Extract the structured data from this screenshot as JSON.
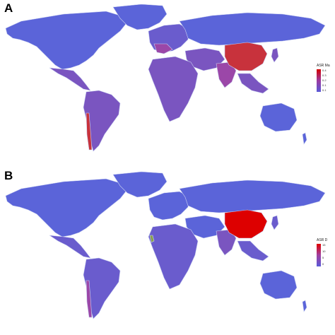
{
  "panels": [
    {
      "label": "A",
      "legend": {
        "title": "ASR Ma",
        "ticks": [
          "0.4",
          "0.3",
          "0.2",
          "0.1",
          "0.1"
        ],
        "gradient": [
          "#d40000",
          "#9b3aa0",
          "#5a5ad8"
        ]
      }
    },
    {
      "label": "B",
      "legend": {
        "title": "ASR D",
        "ticks": [
          "15",
          "10",
          "5",
          "0"
        ],
        "gradient": [
          "#e00000",
          "#a040a0",
          "#5a5ad8"
        ]
      }
    }
  ],
  "colors": {
    "ocean": "#ffffff",
    "base": "#5b64d9",
    "purple_mid": "#7a55c0",
    "purple_high": "#9b47a8",
    "red_high": "#c8323c",
    "red_max": "#dd0000",
    "border": "#c9d0f0"
  }
}
